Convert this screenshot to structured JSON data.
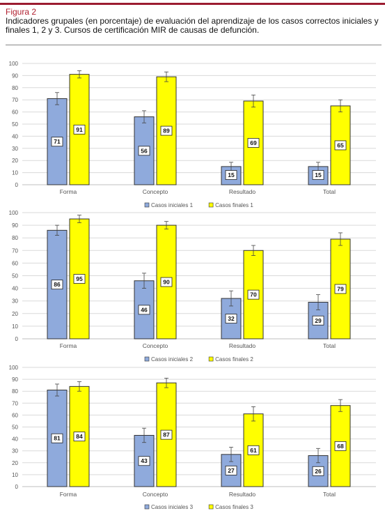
{
  "figure": {
    "label": "Figura 2",
    "caption": "Indicadores grupales (en porcentaje) de evaluación del aprendizaje de los casos correctos iniciales y finales 1, 2 y 3. Cursos de certificación MIR de causas de defunción."
  },
  "colors": {
    "iniciales": "#8faadc",
    "finales": "#ffff00",
    "outline": "#333333",
    "grid": "#d9d9d9",
    "accent": "#9b1b30"
  },
  "chart_data": [
    {
      "type": "bar",
      "categories": [
        "Forma",
        "Concepto",
        "Resultado",
        "Total"
      ],
      "ylim": [
        0,
        100
      ],
      "yticks": [
        0,
        10,
        20,
        30,
        40,
        50,
        60,
        70,
        80,
        90,
        100
      ],
      "legend_position": "bottom",
      "series": [
        {
          "name": "Casos iniciales 1",
          "values": [
            71,
            56,
            15,
            15
          ],
          "errors": [
            5,
            5,
            3.5,
            3.5
          ]
        },
        {
          "name": "Casos finales 1",
          "values": [
            91,
            89,
            69,
            65
          ],
          "errors": [
            3,
            4,
            5,
            5
          ]
        }
      ]
    },
    {
      "type": "bar",
      "categories": [
        "Forma",
        "Concepto",
        "Resultado",
        "Total"
      ],
      "ylim": [
        0,
        100
      ],
      "yticks": [
        0,
        10,
        20,
        30,
        40,
        50,
        60,
        70,
        80,
        90,
        100
      ],
      "legend_position": "bottom",
      "series": [
        {
          "name": "Casos iniciales 2",
          "values": [
            86,
            46,
            32,
            29
          ],
          "errors": [
            4,
            6,
            6,
            6
          ]
        },
        {
          "name": "Casos finales 2",
          "values": [
            95,
            90,
            70,
            79
          ],
          "errors": [
            3,
            3,
            4,
            5
          ]
        }
      ]
    },
    {
      "type": "bar",
      "categories": [
        "Forma",
        "Concepto",
        "Resultado",
        "Total"
      ],
      "ylim": [
        0,
        100
      ],
      "yticks": [
        0,
        10,
        20,
        30,
        40,
        50,
        60,
        70,
        80,
        90,
        100
      ],
      "legend_position": "bottom",
      "series": [
        {
          "name": "Casos iniciales 3",
          "values": [
            81,
            43,
            27,
            26
          ],
          "errors": [
            5,
            6,
            6,
            6
          ]
        },
        {
          "name": "Casos finales 3",
          "values": [
            84,
            87,
            61,
            68
          ],
          "errors": [
            4,
            4,
            6,
            5
          ]
        }
      ]
    }
  ]
}
